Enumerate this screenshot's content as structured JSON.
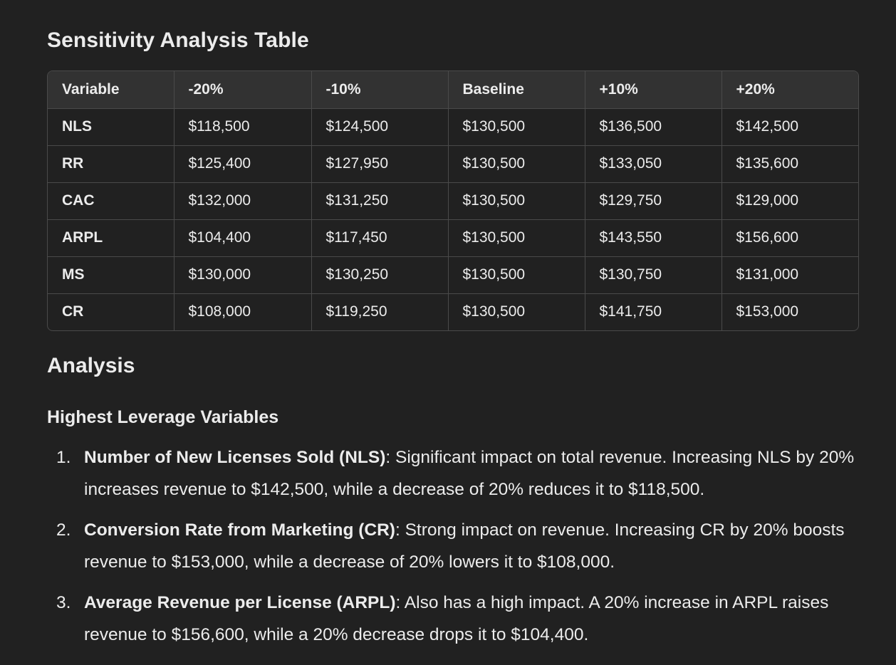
{
  "table_section": {
    "title": "Sensitivity Analysis Table",
    "headers": [
      "Variable",
      "-20%",
      "-10%",
      "Baseline",
      "+10%",
      "+20%"
    ],
    "rows": [
      [
        "NLS",
        "$118,500",
        "$124,500",
        "$130,500",
        "$136,500",
        "$142,500"
      ],
      [
        "RR",
        "$125,400",
        "$127,950",
        "$130,500",
        "$133,050",
        "$135,600"
      ],
      [
        "CAC",
        "$132,000",
        "$131,250",
        "$130,500",
        "$129,750",
        "$129,000"
      ],
      [
        "ARPL",
        "$104,400",
        "$117,450",
        "$130,500",
        "$143,550",
        "$156,600"
      ],
      [
        "MS",
        "$130,000",
        "$130,250",
        "$130,500",
        "$130,750",
        "$131,000"
      ],
      [
        "CR",
        "$108,000",
        "$119,250",
        "$130,500",
        "$141,750",
        "$153,000"
      ]
    ]
  },
  "analysis": {
    "title": "Analysis",
    "subtitle": "Highest Leverage Variables",
    "items": [
      {
        "num": "1.",
        "bold": "Number of New Licenses Sold (NLS)",
        "text": ": Significant impact on total revenue. Increasing NLS by 20% increases revenue to $142,500, while a decrease of 20% reduces it to $118,500."
      },
      {
        "num": "2.",
        "bold": "Conversion Rate from Marketing (CR)",
        "text": ": Strong impact on revenue. Increasing CR by 20% boosts revenue to $153,000, while a decrease of 20% lowers it to $108,000."
      },
      {
        "num": "3.",
        "bold": "Average Revenue per License (ARPL)",
        "text": ": Also has a high impact. A 20% increase in ARPL raises revenue to $156,600, while a 20% decrease drops it to $104,400."
      }
    ]
  }
}
